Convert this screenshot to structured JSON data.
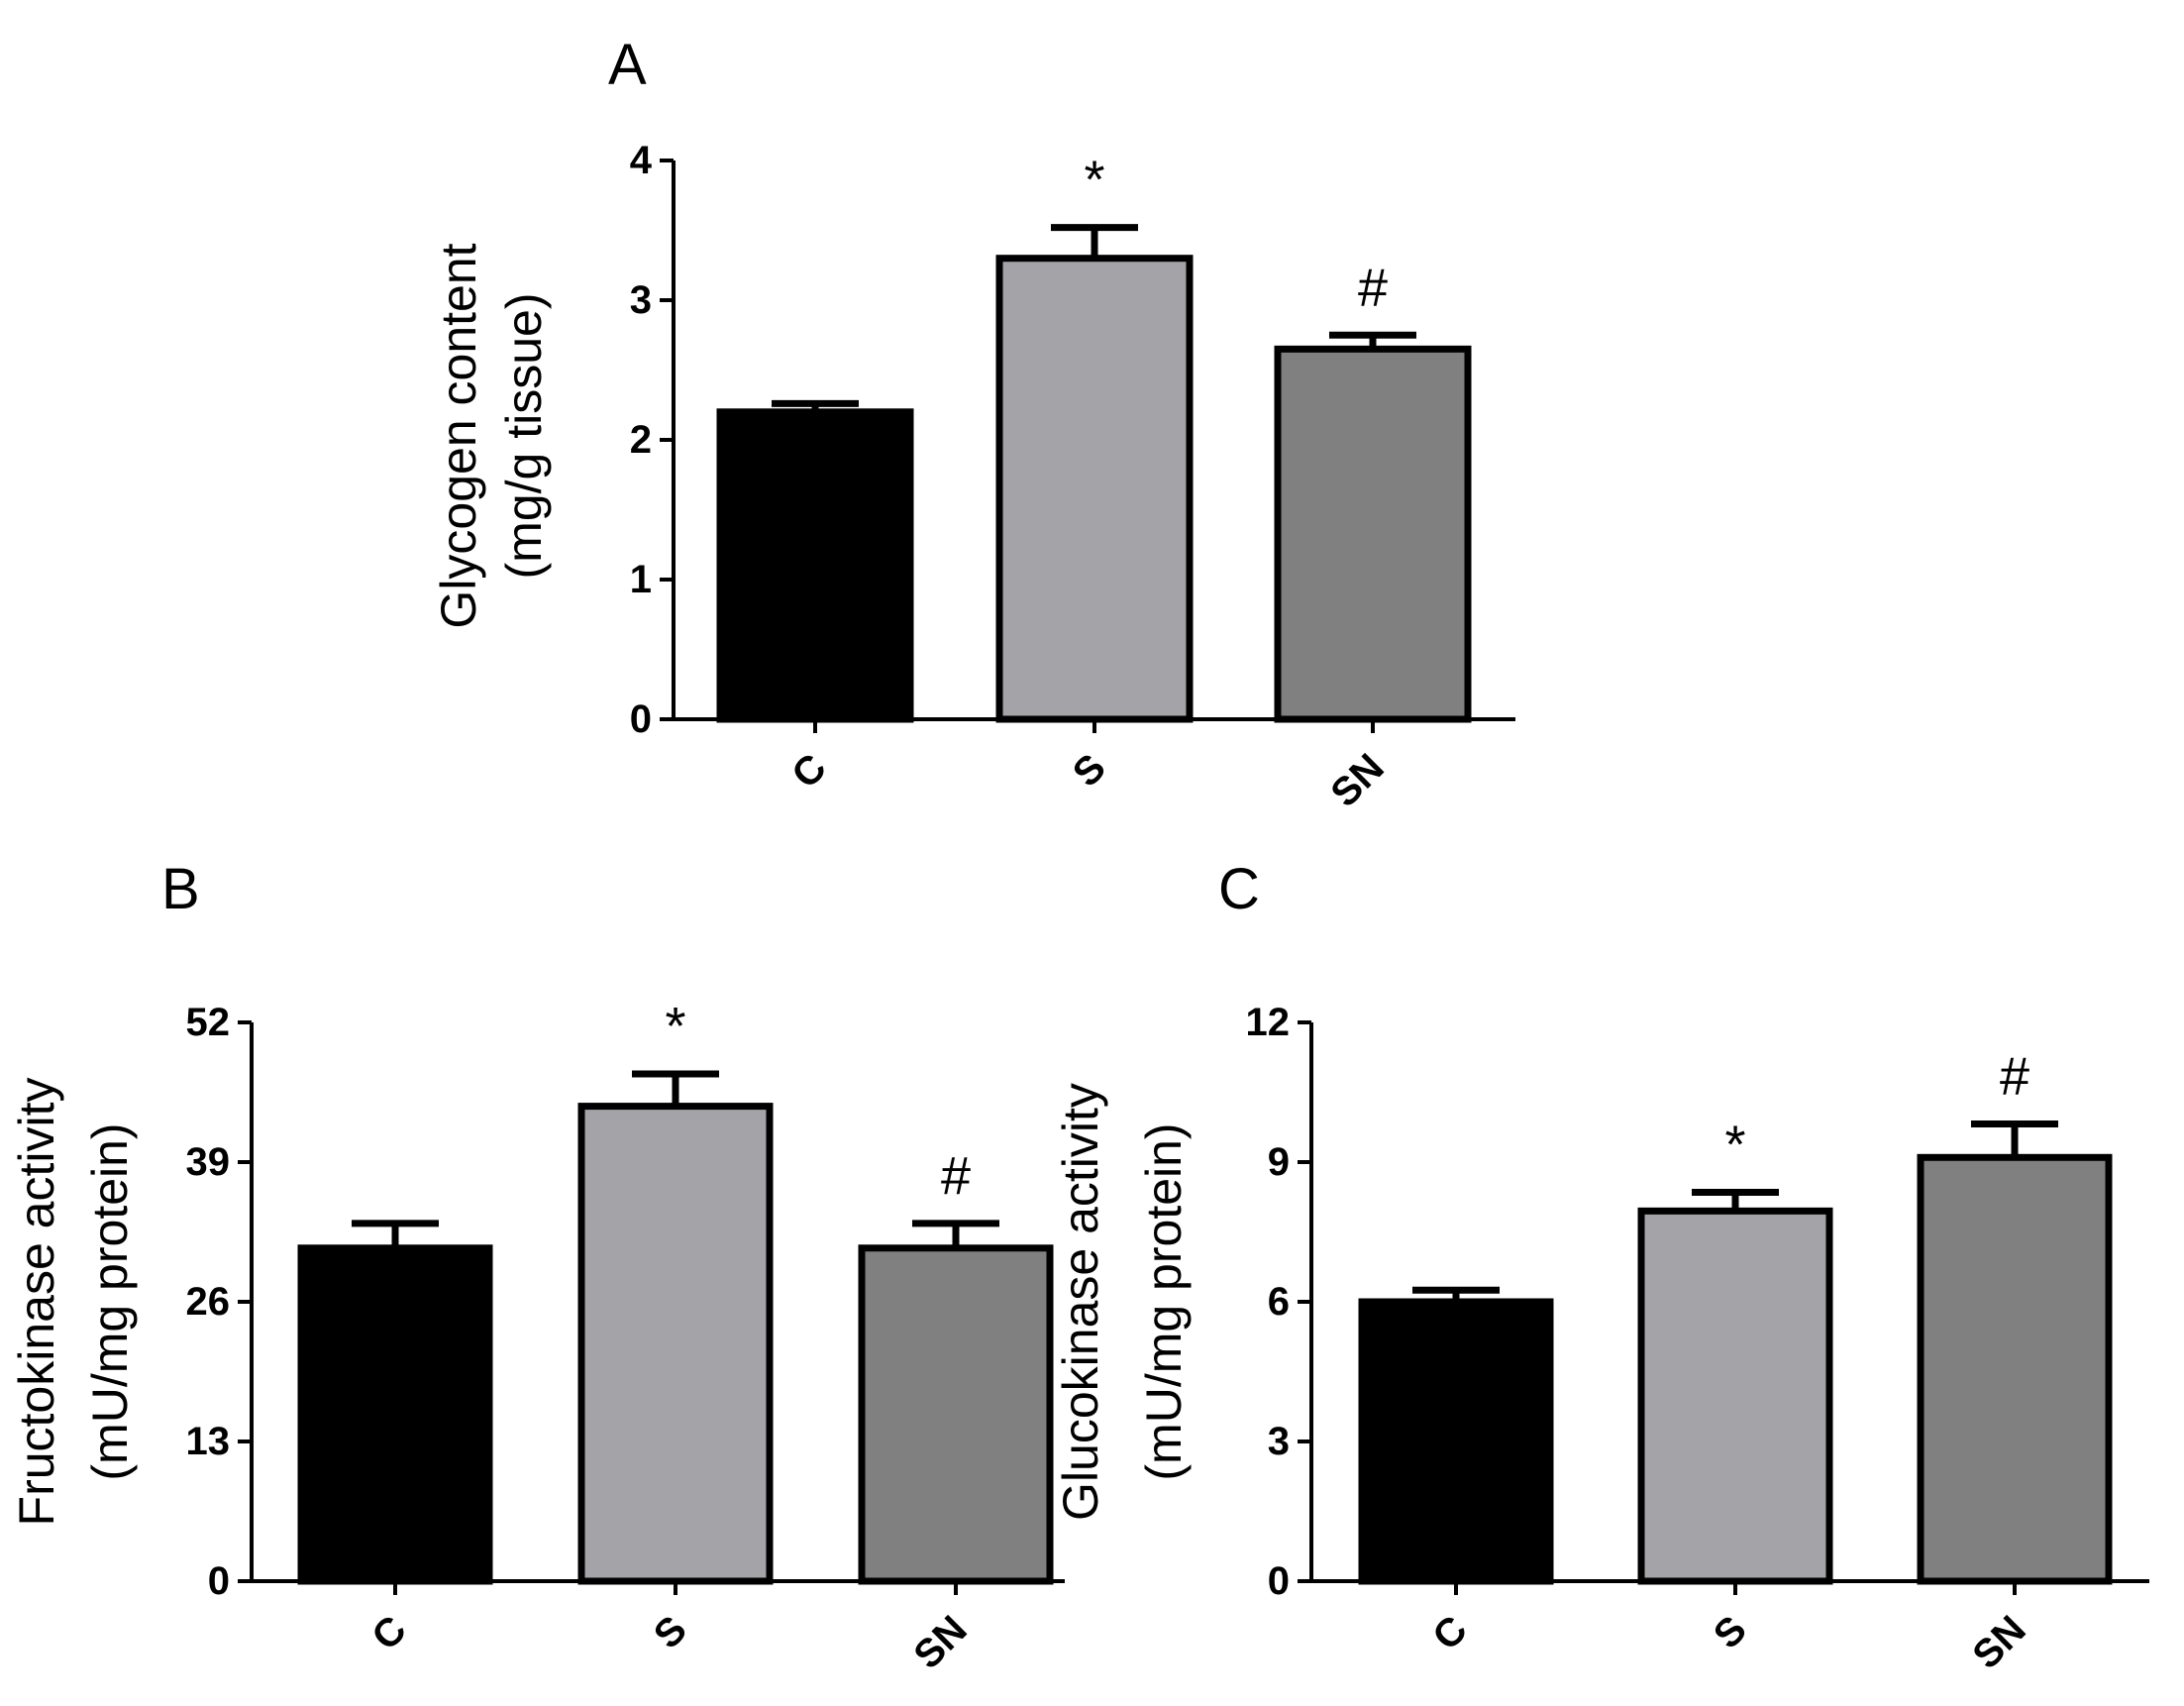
{
  "chart_data": [
    {
      "type": "bar",
      "panel": "A",
      "categories": [
        "C",
        "S",
        "SN"
      ],
      "values": [
        2.2,
        3.3,
        2.65
      ],
      "errors": [
        0.06,
        0.22,
        0.1
      ],
      "significance": [
        "",
        "*",
        "#"
      ],
      "ylabel_lines": [
        "Glycogen content",
        "(mg/g tissue)"
      ],
      "ylim": [
        0,
        4
      ],
      "yticks": [
        0,
        1,
        2,
        3,
        4
      ],
      "bar_colors": [
        "#000000",
        "#a3a3a8",
        "#808080"
      ]
    },
    {
      "type": "bar",
      "panel": "B",
      "categories": [
        "C",
        "S",
        "SN"
      ],
      "values": [
        31,
        44.2,
        31
      ],
      "errors": [
        2.3,
        3.0,
        2.3
      ],
      "significance": [
        "",
        "*",
        "#"
      ],
      "ylabel_lines": [
        "Fructokinase activity",
        "(mU/mg protein)"
      ],
      "ylim": [
        0,
        52
      ],
      "yticks": [
        0,
        13,
        26,
        39,
        52
      ],
      "bar_colors": [
        "#000000",
        "#a3a3a8",
        "#808080"
      ]
    },
    {
      "type": "bar",
      "panel": "C",
      "categories": [
        "C",
        "S",
        "SN"
      ],
      "values": [
        6.0,
        7.95,
        9.1
      ],
      "errors": [
        0.25,
        0.4,
        0.72
      ],
      "significance": [
        "",
        "*",
        "#"
      ],
      "ylabel_lines": [
        "Glucokinase activity",
        "(mU/mg protein)"
      ],
      "ylim": [
        0,
        12
      ],
      "yticks": [
        0,
        3,
        6,
        9,
        12
      ],
      "bar_colors": [
        "#000000",
        "#a3a3a8",
        "#808080"
      ]
    }
  ]
}
